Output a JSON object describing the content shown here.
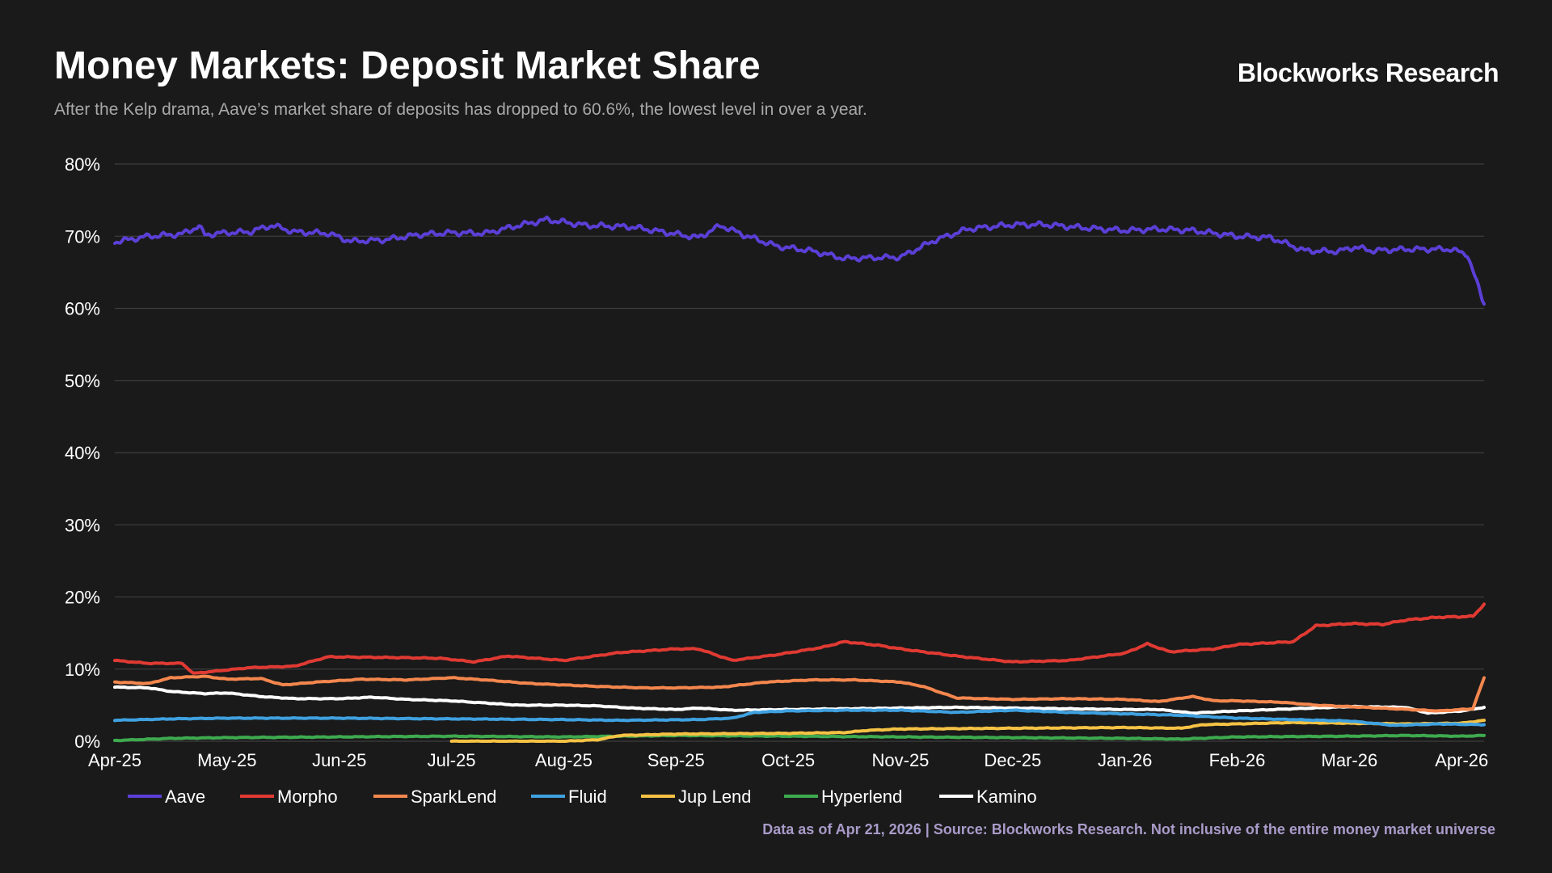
{
  "header": {
    "title": "Money Markets: Deposit Market Share",
    "subtitle": "After the Kelp drama, Aave’s market share of deposits has dropped to 60.6%, the lowest level in over a year.",
    "brand": "Blockworks Research"
  },
  "footer": {
    "note": "Data as of Apr 21, 2026 | Source: Blockworks Research. Not inclusive of the entire money market universe"
  },
  "chart_data": {
    "type": "line",
    "title": "Money Markets: Deposit Market Share",
    "xlabel": "",
    "ylabel": "",
    "ylim": [
      0,
      80
    ],
    "y_ticks": [
      "0%",
      "10%",
      "20%",
      "30%",
      "40%",
      "50%",
      "60%",
      "70%",
      "80%"
    ],
    "x_tick_labels": [
      "Apr-25",
      "May-25",
      "Jun-25",
      "Jul-25",
      "Aug-25",
      "Sep-25",
      "Oct-25",
      "Nov-25",
      "Dec-25",
      "Jan-26",
      "Feb-26",
      "Mar-26",
      "Apr-26"
    ],
    "x_domain_months": [
      0,
      12.2
    ],
    "grid": true,
    "legend_position": "bottom-left",
    "series": [
      {
        "name": "Aave",
        "color": "#5b3fd6",
        "points": [
          [
            0,
            69.2
          ],
          [
            0.3,
            70
          ],
          [
            0.6,
            70.3
          ],
          [
            0.75,
            71.4
          ],
          [
            0.8,
            70.2
          ],
          [
            1,
            70.5
          ],
          [
            1.2,
            70.6
          ],
          [
            1.4,
            71.5
          ],
          [
            1.6,
            70.6
          ],
          [
            1.9,
            70.4
          ],
          [
            2.1,
            69.3
          ],
          [
            2.4,
            69.5
          ],
          [
            2.7,
            70.2
          ],
          [
            3,
            70.5
          ],
          [
            3.3,
            70.4
          ],
          [
            3.6,
            71.5
          ],
          [
            3.85,
            72.3
          ],
          [
            4.2,
            71.5
          ],
          [
            4.6,
            71.3
          ],
          [
            5,
            70.3
          ],
          [
            5.2,
            69.8
          ],
          [
            5.4,
            71.5
          ],
          [
            5.6,
            70.2
          ],
          [
            5.9,
            68.6
          ],
          [
            6.2,
            68
          ],
          [
            6.5,
            66.9
          ],
          [
            6.7,
            67
          ],
          [
            7,
            67.1
          ],
          [
            7.3,
            69.4
          ],
          [
            7.6,
            71
          ],
          [
            8,
            71.6
          ],
          [
            8.3,
            71.6
          ],
          [
            8.6,
            71.2
          ],
          [
            9,
            70.8
          ],
          [
            9.3,
            71
          ],
          [
            9.6,
            70.8
          ],
          [
            10,
            70
          ],
          [
            10.3,
            69.8
          ],
          [
            10.6,
            68
          ],
          [
            10.9,
            67.9
          ],
          [
            11.05,
            68.5
          ],
          [
            11.2,
            68
          ],
          [
            11.5,
            68.2
          ],
          [
            11.9,
            68.2
          ],
          [
            12.05,
            67.5
          ],
          [
            12.2,
            60.6
          ]
        ]
      },
      {
        "name": "Morpho",
        "color": "#e03a33",
        "points": [
          [
            0,
            11.2
          ],
          [
            0.3,
            10.8
          ],
          [
            0.6,
            10.8
          ],
          [
            0.7,
            9.4
          ],
          [
            1.2,
            10.2
          ],
          [
            1.6,
            10.4
          ],
          [
            1.9,
            11.7
          ],
          [
            2.5,
            11.6
          ],
          [
            2.9,
            11.5
          ],
          [
            3.2,
            11
          ],
          [
            3.5,
            11.8
          ],
          [
            4,
            11.2
          ],
          [
            4.5,
            12.3
          ],
          [
            5,
            12.8
          ],
          [
            5.2,
            12.8
          ],
          [
            5.5,
            11.2
          ],
          [
            5.9,
            12
          ],
          [
            6.3,
            13
          ],
          [
            6.5,
            13.8
          ],
          [
            6.8,
            13.3
          ],
          [
            7,
            12.8
          ],
          [
            7.2,
            12.4
          ],
          [
            7.5,
            11.8
          ],
          [
            8,
            11
          ],
          [
            8.5,
            11.2
          ],
          [
            9,
            12.2
          ],
          [
            9.2,
            13.5
          ],
          [
            9.4,
            12.4
          ],
          [
            9.8,
            12.8
          ],
          [
            10,
            13.4
          ],
          [
            10.5,
            13.8
          ],
          [
            10.7,
            16
          ],
          [
            11,
            16.3
          ],
          [
            11.3,
            16.2
          ],
          [
            11.5,
            16.8
          ],
          [
            11.8,
            17.2
          ],
          [
            12.1,
            17.3
          ],
          [
            12.2,
            19
          ]
        ]
      },
      {
        "name": "SparkLend",
        "color": "#f4874e",
        "points": [
          [
            0,
            8.2
          ],
          [
            0.3,
            8
          ],
          [
            0.5,
            8.8
          ],
          [
            0.8,
            9
          ],
          [
            1,
            8.6
          ],
          [
            1.3,
            8.7
          ],
          [
            1.5,
            7.8
          ],
          [
            1.8,
            8.2
          ],
          [
            2.2,
            8.6
          ],
          [
            2.6,
            8.5
          ],
          [
            3,
            8.8
          ],
          [
            3.3,
            8.5
          ],
          [
            3.7,
            8
          ],
          [
            4,
            7.8
          ],
          [
            4.3,
            7.6
          ],
          [
            4.7,
            7.4
          ],
          [
            5,
            7.4
          ],
          [
            5.4,
            7.5
          ],
          [
            5.8,
            8.2
          ],
          [
            6.2,
            8.5
          ],
          [
            6.6,
            8.5
          ],
          [
            7,
            8.2
          ],
          [
            7.2,
            7.6
          ],
          [
            7.5,
            6
          ],
          [
            8,
            5.8
          ],
          [
            8.5,
            5.9
          ],
          [
            9,
            5.8
          ],
          [
            9.3,
            5.5
          ],
          [
            9.6,
            6.2
          ],
          [
            9.8,
            5.6
          ],
          [
            10,
            5.6
          ],
          [
            10.4,
            5.4
          ],
          [
            10.7,
            5
          ],
          [
            11,
            4.8
          ],
          [
            11.4,
            4.5
          ],
          [
            11.8,
            4.2
          ],
          [
            12.1,
            4.5
          ],
          [
            12.2,
            8.8
          ]
        ]
      },
      {
        "name": "Fluid",
        "color": "#3fa1e0",
        "points": [
          [
            0,
            2.9
          ],
          [
            0.5,
            3.1
          ],
          [
            1,
            3.2
          ],
          [
            2,
            3.2
          ],
          [
            3,
            3.1
          ],
          [
            4,
            3
          ],
          [
            4.5,
            2.9
          ],
          [
            5.2,
            3
          ],
          [
            5.5,
            3.2
          ],
          [
            5.7,
            4
          ],
          [
            6,
            4.2
          ],
          [
            6.5,
            4.3
          ],
          [
            7,
            4.3
          ],
          [
            7.5,
            4
          ],
          [
            8,
            4.3
          ],
          [
            8.5,
            4
          ],
          [
            9,
            3.8
          ],
          [
            9.5,
            3.6
          ],
          [
            10,
            3.2
          ],
          [
            10.5,
            3
          ],
          [
            11,
            2.8
          ],
          [
            11.4,
            2.2
          ],
          [
            11.8,
            2.4
          ],
          [
            12.2,
            2.3
          ]
        ]
      },
      {
        "name": "Jup Lend",
        "color": "#f5c244",
        "points": [
          [
            3,
            0
          ],
          [
            4,
            0
          ],
          [
            4.3,
            0.2
          ],
          [
            4.5,
            0.8
          ],
          [
            5,
            1
          ],
          [
            6,
            1.1
          ],
          [
            6.5,
            1.2
          ],
          [
            6.7,
            1.5
          ],
          [
            7,
            1.7
          ],
          [
            8,
            1.8
          ],
          [
            9,
            1.9
          ],
          [
            9.5,
            1.8
          ],
          [
            9.7,
            2.3
          ],
          [
            10,
            2.4
          ],
          [
            10.5,
            2.6
          ],
          [
            11,
            2.5
          ],
          [
            11.5,
            2.4
          ],
          [
            12,
            2.5
          ],
          [
            12.2,
            2.9
          ]
        ]
      },
      {
        "name": "Hyperlend",
        "color": "#3eaa4f",
        "points": [
          [
            0,
            0.1
          ],
          [
            0.5,
            0.4
          ],
          [
            1,
            0.5
          ],
          [
            2,
            0.6
          ],
          [
            3,
            0.7
          ],
          [
            4,
            0.6
          ],
          [
            4.5,
            0.7
          ],
          [
            5,
            0.8
          ],
          [
            6,
            0.7
          ],
          [
            7,
            0.6
          ],
          [
            8,
            0.5
          ],
          [
            9,
            0.4
          ],
          [
            9.5,
            0.3
          ],
          [
            10,
            0.6
          ],
          [
            11,
            0.7
          ],
          [
            11.5,
            0.8
          ],
          [
            12,
            0.7
          ],
          [
            12.2,
            0.8
          ]
        ]
      },
      {
        "name": "Kamino",
        "color": "#ffffff",
        "points": [
          [
            0,
            7.5
          ],
          [
            0.3,
            7.4
          ],
          [
            0.5,
            6.9
          ],
          [
            0.8,
            6.6
          ],
          [
            1,
            6.7
          ],
          [
            1.3,
            6.2
          ],
          [
            1.6,
            5.9
          ],
          [
            2,
            5.9
          ],
          [
            2.3,
            6.1
          ],
          [
            2.6,
            5.8
          ],
          [
            3,
            5.6
          ],
          [
            3.3,
            5.3
          ],
          [
            3.6,
            5
          ],
          [
            4,
            5
          ],
          [
            4.3,
            4.9
          ],
          [
            4.6,
            4.6
          ],
          [
            5,
            4.4
          ],
          [
            5.2,
            4.6
          ],
          [
            5.5,
            4.3
          ],
          [
            6,
            4.4
          ],
          [
            6.5,
            4.5
          ],
          [
            7,
            4.6
          ],
          [
            7.5,
            4.7
          ],
          [
            8,
            4.6
          ],
          [
            8.5,
            4.5
          ],
          [
            9,
            4.4
          ],
          [
            9.3,
            4.4
          ],
          [
            9.6,
            3.9
          ],
          [
            10,
            4.2
          ],
          [
            10.5,
            4.5
          ],
          [
            11,
            4.8
          ],
          [
            11.5,
            4.7
          ],
          [
            11.7,
            3.9
          ],
          [
            12,
            4.2
          ],
          [
            12.2,
            4.7
          ]
        ]
      }
    ]
  }
}
